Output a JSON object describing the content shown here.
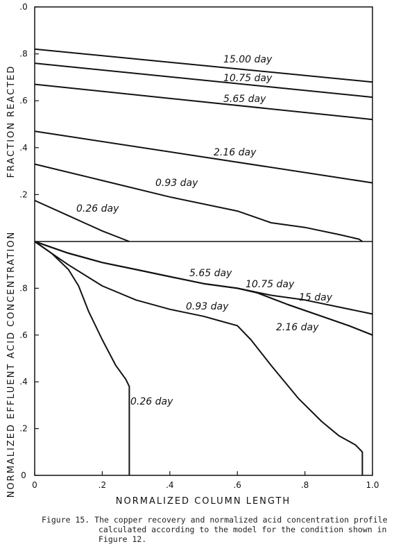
{
  "chart_data": [
    {
      "type": "line",
      "ylabel": "FRACTION REACTED",
      "xlim": [
        0,
        1.0
      ],
      "ylim": [
        0,
        1.0
      ],
      "yticks": [
        ".2",
        ".4",
        ".6",
        ".8",
        ".0"
      ],
      "series": [
        {
          "name": "15.00 day",
          "points": [
            [
              0,
              0.82
            ],
            [
              1.0,
              0.68
            ]
          ]
        },
        {
          "name": "10.75 day",
          "points": [
            [
              0,
              0.76
            ],
            [
              1.0,
              0.615
            ]
          ]
        },
        {
          "name": "5.65 day",
          "points": [
            [
              0,
              0.67
            ],
            [
              1.0,
              0.52
            ]
          ]
        },
        {
          "name": "2.16 day",
          "points": [
            [
              0,
              0.47
            ],
            [
              1.0,
              0.25
            ]
          ]
        },
        {
          "name": "0.93 day",
          "points": [
            [
              0,
              0.33
            ],
            [
              0.2,
              0.26
            ],
            [
              0.4,
              0.19
            ],
            [
              0.6,
              0.13
            ],
            [
              0.64,
              0.11
            ],
            [
              0.7,
              0.08
            ],
            [
              0.8,
              0.06
            ],
            [
              0.9,
              0.03
            ],
            [
              0.96,
              0.01
            ],
            [
              0.97,
              0.0
            ]
          ]
        },
        {
          "name": "0.26 day",
          "points": [
            [
              0,
              0.175
            ],
            [
              0.1,
              0.11
            ],
            [
              0.2,
              0.045
            ],
            [
              0.28,
              0.0
            ]
          ]
        }
      ]
    },
    {
      "type": "line",
      "ylabel": "NORMALIZED EFFLUENT ACID CONCENTRATION",
      "xlabel": "NORMALIZED COLUMN LENGTH",
      "xlim": [
        0,
        1.0
      ],
      "ylim": [
        0,
        1.0
      ],
      "xticks": [
        "0",
        ".2",
        ".4",
        ".6",
        ".8",
        "1.0"
      ],
      "yticks": [
        "0",
        ".2",
        ".4",
        ".6",
        ".8"
      ],
      "series": [
        {
          "name": "15 day",
          "points": [
            [
              0,
              1.0
            ],
            [
              0.1,
              0.95
            ],
            [
              0.2,
              0.91
            ],
            [
              0.3,
              0.88
            ],
            [
              0.4,
              0.85
            ],
            [
              0.5,
              0.82
            ],
            [
              0.6,
              0.8
            ],
            [
              0.7,
              0.77
            ],
            [
              0.8,
              0.75
            ],
            [
              0.9,
              0.72
            ],
            [
              1.0,
              0.69
            ]
          ]
        },
        {
          "name": "10.75 day",
          "points": [
            [
              0,
              1.0
            ],
            [
              0.1,
              0.95
            ],
            [
              0.2,
              0.91
            ],
            [
              0.3,
              0.88
            ],
            [
              0.4,
              0.85
            ],
            [
              0.5,
              0.82
            ],
            [
              0.6,
              0.8
            ],
            [
              0.66,
              0.78
            ],
            [
              0.75,
              0.73
            ],
            [
              0.85,
              0.68
            ],
            [
              0.93,
              0.64
            ],
            [
              1.0,
              0.6
            ]
          ]
        },
        {
          "name": "5.65 day",
          "points": [
            [
              0,
              1.0
            ],
            [
              0.1,
              0.95
            ],
            [
              0.2,
              0.91
            ],
            [
              0.3,
              0.88
            ],
            [
              0.4,
              0.85
            ],
            [
              0.5,
              0.82
            ],
            [
              0.6,
              0.8
            ],
            [
              0.65,
              0.785
            ]
          ]
        },
        {
          "name": "2.16 day",
          "points": [
            [
              0.65,
              0.785
            ],
            [
              0.75,
              0.73
            ],
            [
              0.85,
              0.68
            ],
            [
              0.93,
              0.64
            ],
            [
              1.0,
              0.6
            ]
          ]
        },
        {
          "name": "0.93 day",
          "points": [
            [
              0,
              1.0
            ],
            [
              0.05,
              0.95
            ],
            [
              0.1,
              0.9
            ],
            [
              0.2,
              0.81
            ],
            [
              0.3,
              0.75
            ],
            [
              0.4,
              0.71
            ],
            [
              0.5,
              0.68
            ],
            [
              0.55,
              0.66
            ],
            [
              0.6,
              0.64
            ],
            [
              0.64,
              0.58
            ],
            [
              0.7,
              0.47
            ],
            [
              0.78,
              0.33
            ],
            [
              0.85,
              0.23
            ],
            [
              0.9,
              0.17
            ],
            [
              0.95,
              0.13
            ],
            [
              0.97,
              0.1
            ],
            [
              0.97,
              0.0
            ]
          ]
        },
        {
          "name": "0.26 day",
          "points": [
            [
              0,
              1.0
            ],
            [
              0.05,
              0.95
            ],
            [
              0.1,
              0.88
            ],
            [
              0.13,
              0.81
            ],
            [
              0.16,
              0.7
            ],
            [
              0.2,
              0.58
            ],
            [
              0.24,
              0.47
            ],
            [
              0.27,
              0.41
            ],
            [
              0.28,
              0.38
            ],
            [
              0.28,
              0.0
            ]
          ]
        }
      ]
    }
  ],
  "caption": {
    "lines": [
      "Figure 15. The copper recovery and normalized acid concentration profile",
      "calculated according to the model for the condition shown in",
      "Figure 12."
    ]
  }
}
